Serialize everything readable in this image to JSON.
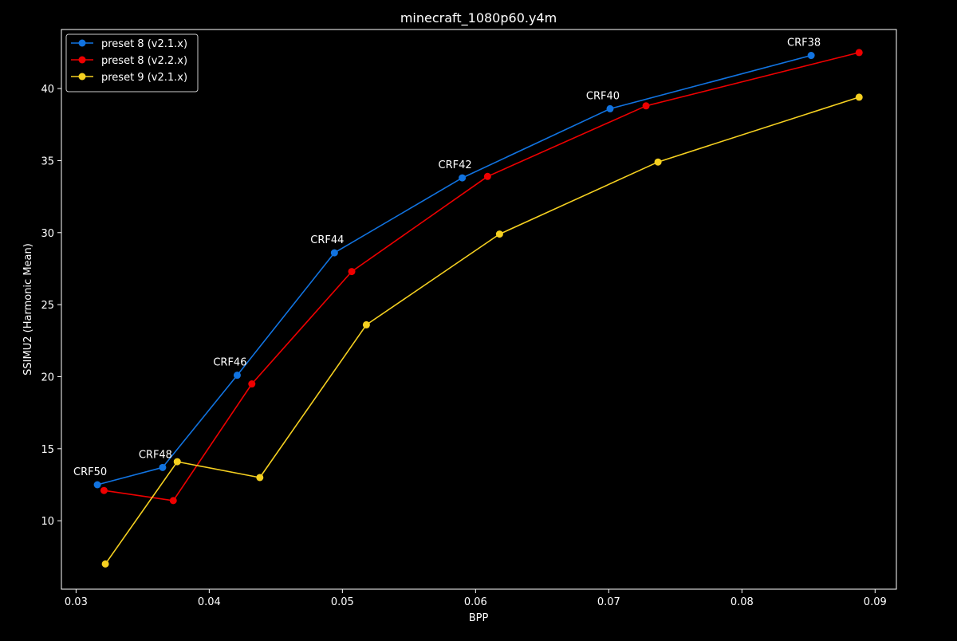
{
  "chart_data": {
    "type": "line",
    "title": "minecraft_1080p60.y4m",
    "xlabel": "BPP",
    "ylabel": "SSIMU2 (Harmonic Mean)",
    "xlim": [
      0.0289,
      0.0916
    ],
    "ylim": [
      5.25,
      44.1
    ],
    "xticks": [
      0.03,
      0.04,
      0.05,
      0.06,
      0.07,
      0.08,
      0.09
    ],
    "xtick_labels": [
      "0.03",
      "0.04",
      "0.05",
      "0.06",
      "0.07",
      "0.08",
      "0.09"
    ],
    "yticks": [
      10,
      15,
      20,
      25,
      30,
      35,
      40
    ],
    "ytick_labels": [
      "10",
      "15",
      "20",
      "25",
      "30",
      "35",
      "40"
    ],
    "grid": false,
    "legend_position": "upper-left",
    "background": "#000000",
    "foreground": "#ffffff",
    "series": [
      {
        "name": "preset 8 (v2.1.x)",
        "color": "#1173e0",
        "x": [
          0.0316,
          0.0365,
          0.0421,
          0.0494,
          0.059,
          0.0701,
          0.0852
        ],
        "y": [
          12.5,
          13.7,
          20.1,
          28.6,
          33.8,
          38.6,
          42.3
        ]
      },
      {
        "name": "preset 8 (v2.2.x)",
        "color": "#ee0000",
        "x": [
          0.0321,
          0.0373,
          0.0432,
          0.0507,
          0.0609,
          0.0728,
          0.0888
        ],
        "y": [
          12.1,
          11.4,
          19.5,
          27.3,
          33.9,
          38.8,
          42.5
        ]
      },
      {
        "name": "preset 9 (v2.1.x)",
        "color": "#f5d020",
        "x": [
          0.0322,
          0.0376,
          0.0438,
          0.0518,
          0.0618,
          0.0737,
          0.0888
        ],
        "y": [
          7.0,
          14.1,
          13.0,
          23.6,
          29.9,
          34.9,
          39.4
        ]
      }
    ],
    "annotations": [
      {
        "text": "CRF50",
        "x": 0.0316,
        "y": 12.5
      },
      {
        "text": "CRF48",
        "x": 0.0365,
        "y": 13.7
      },
      {
        "text": "CRF46",
        "x": 0.0421,
        "y": 20.1
      },
      {
        "text": "CRF44",
        "x": 0.0494,
        "y": 28.6
      },
      {
        "text": "CRF42",
        "x": 0.059,
        "y": 33.8
      },
      {
        "text": "CRF40",
        "x": 0.0701,
        "y": 38.6
      },
      {
        "text": "CRF38",
        "x": 0.0852,
        "y": 42.3
      }
    ]
  }
}
